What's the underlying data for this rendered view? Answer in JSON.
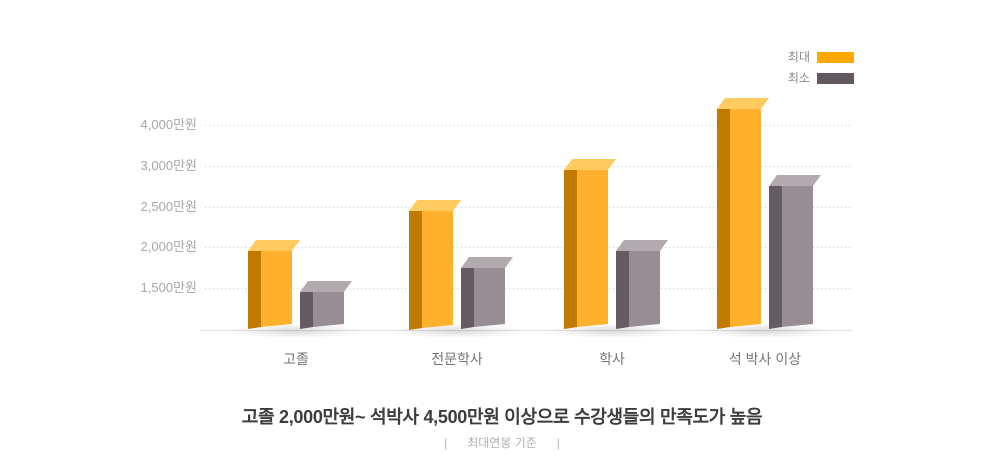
{
  "legend": {
    "items": [
      {
        "label": "최대",
        "key": "max"
      },
      {
        "label": "최소",
        "key": "min"
      }
    ]
  },
  "chart_data": {
    "type": "bar",
    "categories": [
      "고졸",
      "전문학사",
      "학사",
      "석 박사 이상"
    ],
    "series": [
      {
        "name": "최대",
        "key": "max",
        "values": [
          2000,
          2500,
          3000,
          4500
        ],
        "colors": {
          "front": "#FFB12E",
          "side": "#C07A00",
          "top": "#FFCA5F",
          "legend": "#FFA800"
        }
      },
      {
        "name": "최소",
        "key": "min",
        "values": [
          1500,
          1800,
          2000,
          2800
        ],
        "colors": {
          "front": "#978D94",
          "side": "#665B63",
          "top": "#B3AAB0",
          "legend": "#625860"
        }
      }
    ],
    "unit": "만원",
    "y_ticks": [
      {
        "value": 4000,
        "label": "4,000만원"
      },
      {
        "value": 3000,
        "label": "3,000만원"
      },
      {
        "value": 2500,
        "label": "2,500만원"
      },
      {
        "value": 2000,
        "label": "2,000만원"
      },
      {
        "value": 1500,
        "label": "1,500만원"
      }
    ],
    "xlabel": "",
    "ylabel": "",
    "grid": "dotted-horizontal",
    "legend_position": "top-right",
    "axis_note": "눈금 간격 동일(값 비선형: 1,500~2,500은 500 단위, 3,000~4,000은 1,000 단위)"
  },
  "caption": {
    "title": "고졸 2,000만원~ 석박사 4,500만원 이상으로 수강생들의 만족도가 높음",
    "separator": "|",
    "subtitle": "최대연봉 기준"
  },
  "colors": {
    "background": "#FFFFFF",
    "grid": "#CBCBCB",
    "baseline": "#E2E2E2",
    "tick_label": "#A7A7A7",
    "category_label": "#757575",
    "legend_label": "#8B8B8B",
    "title": "#3C3C3C",
    "subtitle": "#B1B1B1",
    "shadow": "rgba(125,118,122,0.28)"
  }
}
